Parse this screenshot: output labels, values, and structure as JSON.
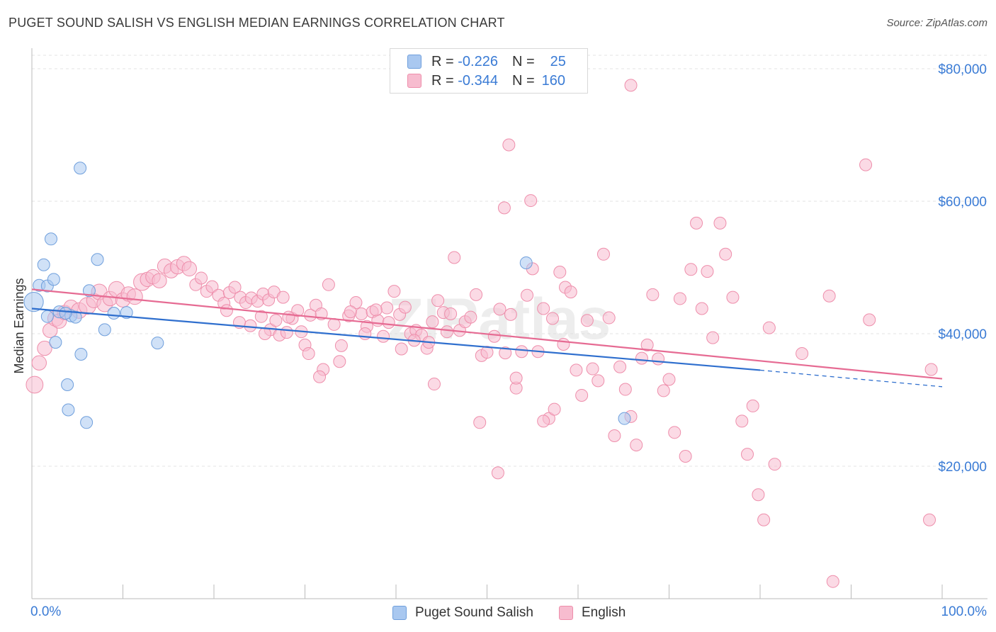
{
  "header": {
    "title": "PUGET SOUND SALISH VS ENGLISH MEDIAN EARNINGS CORRELATION CHART",
    "source": "Source: ZipAtlas.com"
  },
  "legend": {
    "rows": [
      {
        "r_label": "R =",
        "r_value": "-0.226",
        "n_label": "N =",
        "n_value": "25"
      },
      {
        "r_label": "R =",
        "r_value": "-0.344",
        "n_label": "N =",
        "n_value": "160"
      }
    ]
  },
  "bottom_legend": {
    "items": [
      {
        "label": "Puget Sound Salish"
      },
      {
        "label": "English"
      }
    ]
  },
  "watermark": "ZIPatlas",
  "colors": {
    "blue_fill": "#a9c8f0",
    "blue_stroke": "#6f9fdc",
    "blue_line": "#2f6fce",
    "pink_fill": "#f7bccf",
    "pink_stroke": "#ee8eab",
    "pink_line": "#e66b93",
    "value_text": "#3a7bd5",
    "grid": "#e3e3e3"
  },
  "chart_data": {
    "type": "scatter",
    "title": "PUGET SOUND SALISH VS ENGLISH MEDIAN EARNINGS CORRELATION CHART",
    "xlabel": "",
    "ylabel": "Median Earnings",
    "xlim": [
      0,
      100
    ],
    "ylim": [
      0,
      80000
    ],
    "x_tick_labels": [
      "0.0%",
      "100.0%"
    ],
    "y_ticks": [
      {
        "value": 20000,
        "label": "$20,000"
      },
      {
        "value": 40000,
        "label": "$40,000"
      },
      {
        "value": 60000,
        "label": "$60,000"
      },
      {
        "value": 80000,
        "label": "$80,000"
      }
    ],
    "grid": true,
    "legend_position": "top-center",
    "series": [
      {
        "name": "Puget Sound Salish",
        "r": -0.226,
        "n": 25,
        "trend": {
          "x0": 0,
          "y0": 43800,
          "x1": 80,
          "y1": 34500,
          "dashed_to_x": 100,
          "dashed_to_y": 32000
        },
        "points": [
          [
            0.2,
            44800,
            1.6
          ],
          [
            0.8,
            47300,
            1
          ],
          [
            1.7,
            47200,
            1
          ],
          [
            2.1,
            54300,
            1
          ],
          [
            1.3,
            50400,
            1
          ],
          [
            2.4,
            48200,
            1
          ],
          [
            5.3,
            65000,
            1
          ],
          [
            7.2,
            51200,
            1
          ],
          [
            6.3,
            46500,
            1
          ],
          [
            2.6,
            38700,
            1
          ],
          [
            5.4,
            36900,
            1
          ],
          [
            4.3,
            42700,
            1
          ],
          [
            3.0,
            43300,
            1
          ],
          [
            4.8,
            42500,
            1
          ],
          [
            9.0,
            43100,
            1
          ],
          [
            10.4,
            43200,
            1
          ],
          [
            8.0,
            40600,
            1
          ],
          [
            13.8,
            38600,
            1
          ],
          [
            4.0,
            28500,
            1
          ],
          [
            3.9,
            32300,
            1
          ],
          [
            6.0,
            26600,
            1
          ],
          [
            1.7,
            42600,
            1
          ],
          [
            54.3,
            50700,
            1
          ],
          [
            65.1,
            27200,
            1
          ],
          [
            3.7,
            43100,
            1
          ]
        ]
      },
      {
        "name": "English",
        "r": -0.344,
        "n": 160,
        "trend": {
          "x0": 0,
          "y0": 46700,
          "x1": 100,
          "y1": 33200
        },
        "points": [
          [
            0.3,
            32300,
            1.4
          ],
          [
            0.8,
            35600,
            1.2
          ],
          [
            1.4,
            37800,
            1.2
          ],
          [
            2.0,
            40500,
            1.2
          ],
          [
            2.6,
            42300,
            1.3
          ],
          [
            3.0,
            41900,
            1.2
          ],
          [
            3.6,
            43200,
            1.2
          ],
          [
            4.3,
            44000,
            1.2
          ],
          [
            5.2,
            43500,
            1.3
          ],
          [
            6.1,
            44200,
            1.4
          ],
          [
            6.8,
            45000,
            1.2
          ],
          [
            7.4,
            46300,
            1.3
          ],
          [
            8.0,
            44500,
            1.3
          ],
          [
            8.6,
            45300,
            1.2
          ],
          [
            9.3,
            46700,
            1.3
          ],
          [
            10.0,
            45100,
            1.2
          ],
          [
            10.6,
            46000,
            1.2
          ],
          [
            11.3,
            45600,
            1.3
          ],
          [
            12.1,
            47800,
            1.4
          ],
          [
            12.7,
            48200,
            1.2
          ],
          [
            13.3,
            48600,
            1.2
          ],
          [
            14.0,
            48000,
            1.2
          ],
          [
            14.6,
            50200,
            1.2
          ],
          [
            15.3,
            49500,
            1.2
          ],
          [
            16.0,
            50100,
            1.2
          ],
          [
            16.7,
            50600,
            1.2
          ],
          [
            17.3,
            49800,
            1.2
          ],
          [
            18.0,
            47400,
            1
          ],
          [
            18.6,
            48400,
            1
          ],
          [
            19.2,
            46400,
            1
          ],
          [
            19.8,
            47100,
            1
          ],
          [
            20.5,
            45800,
            1
          ],
          [
            21.1,
            44600,
            1
          ],
          [
            21.7,
            46200,
            1
          ],
          [
            22.3,
            47000,
            1
          ],
          [
            22.9,
            45500,
            1
          ],
          [
            23.5,
            44700,
            1
          ],
          [
            24.1,
            45400,
            1
          ],
          [
            24.8,
            44900,
            1
          ],
          [
            25.4,
            46000,
            1
          ],
          [
            26.0,
            45100,
            1
          ],
          [
            26.6,
            46300,
            1
          ],
          [
            24.0,
            41200,
            1
          ],
          [
            25.2,
            42600,
            1
          ],
          [
            26.2,
            40600,
            1
          ],
          [
            27.2,
            39800,
            1
          ],
          [
            28.0,
            40200,
            1
          ],
          [
            28.6,
            42300,
            1
          ],
          [
            29.2,
            43500,
            1
          ],
          [
            30.0,
            38300,
            1
          ],
          [
            30.6,
            42800,
            1
          ],
          [
            31.2,
            44300,
            1
          ],
          [
            31.8,
            43000,
            1
          ],
          [
            32.6,
            47400,
            1
          ],
          [
            33.2,
            41400,
            1
          ],
          [
            34.0,
            38200,
            1
          ],
          [
            34.8,
            42700,
            1
          ],
          [
            35.6,
            44700,
            1
          ],
          [
            36.2,
            43000,
            1
          ],
          [
            36.8,
            41100,
            1
          ],
          [
            37.4,
            43300,
            1
          ],
          [
            38.0,
            42000,
            1
          ],
          [
            38.6,
            39600,
            1
          ],
          [
            39.2,
            41700,
            1
          ],
          [
            39.8,
            46400,
            1
          ],
          [
            40.4,
            42900,
            1
          ],
          [
            41.0,
            44000,
            1
          ],
          [
            41.6,
            40000,
            1
          ],
          [
            42.2,
            40500,
            1
          ],
          [
            42.8,
            39800,
            1
          ],
          [
            43.4,
            37800,
            1
          ],
          [
            44.0,
            41800,
            1
          ],
          [
            44.6,
            45000,
            1
          ],
          [
            45.2,
            43200,
            1
          ],
          [
            46.0,
            43000,
            1
          ],
          [
            46.4,
            51500,
            1
          ],
          [
            47.0,
            40500,
            1
          ],
          [
            47.6,
            41800,
            1
          ],
          [
            48.2,
            42500,
            1
          ],
          [
            48.8,
            45900,
            1
          ],
          [
            49.4,
            36700,
            1
          ],
          [
            50.0,
            37200,
            1
          ],
          [
            50.8,
            39600,
            1
          ],
          [
            51.4,
            43700,
            1
          ],
          [
            52.0,
            37100,
            1
          ],
          [
            52.6,
            42900,
            1
          ],
          [
            53.2,
            31800,
            1
          ],
          [
            53.8,
            37300,
            1
          ],
          [
            54.4,
            45800,
            1
          ],
          [
            55.0,
            49800,
            1
          ],
          [
            55.6,
            37300,
            1
          ],
          [
            56.2,
            43800,
            1
          ],
          [
            56.8,
            27200,
            1
          ],
          [
            57.4,
            28600,
            1
          ],
          [
            58.0,
            49300,
            1
          ],
          [
            58.6,
            47000,
            1
          ],
          [
            59.2,
            46300,
            1
          ],
          [
            59.8,
            34500,
            1
          ],
          [
            60.4,
            30700,
            1
          ],
          [
            61.0,
            42000,
            1
          ],
          [
            61.6,
            34700,
            1
          ],
          [
            62.2,
            32900,
            1
          ],
          [
            62.8,
            52000,
            1
          ],
          [
            63.4,
            42400,
            1
          ],
          [
            64.0,
            24600,
            1
          ],
          [
            64.6,
            35000,
            1
          ],
          [
            65.2,
            31600,
            1
          ],
          [
            65.8,
            27500,
            1
          ],
          [
            66.4,
            23200,
            1
          ],
          [
            67.0,
            36300,
            1
          ],
          [
            67.6,
            38300,
            1
          ],
          [
            68.2,
            45900,
            1
          ],
          [
            68.8,
            36200,
            1
          ],
          [
            69.4,
            31400,
            1
          ],
          [
            70.0,
            33100,
            1
          ],
          [
            70.6,
            25100,
            1
          ],
          [
            71.2,
            45300,
            1
          ],
          [
            71.8,
            21500,
            1
          ],
          [
            72.4,
            49700,
            1
          ],
          [
            73.0,
            56700,
            1
          ],
          [
            73.6,
            43800,
            1
          ],
          [
            74.2,
            49400,
            1
          ],
          [
            74.8,
            39400,
            1
          ],
          [
            75.6,
            56700,
            1
          ],
          [
            76.2,
            52000,
            1
          ],
          [
            77.0,
            45500,
            1
          ],
          [
            78.0,
            26800,
            1
          ],
          [
            78.6,
            21800,
            1
          ],
          [
            79.2,
            29100,
            1
          ],
          [
            79.8,
            15700,
            1
          ],
          [
            80.4,
            11900,
            1
          ],
          [
            81.0,
            40900,
            1
          ],
          [
            81.6,
            20300,
            1
          ],
          [
            84.6,
            37000,
            1
          ],
          [
            87.6,
            45700,
            1
          ],
          [
            88.0,
            2600,
            1
          ],
          [
            91.6,
            65500,
            1
          ],
          [
            92.0,
            42100,
            1
          ],
          [
            98.6,
            11900,
            1
          ],
          [
            98.8,
            34600,
            1
          ],
          [
            65.8,
            77500,
            1
          ],
          [
            52.4,
            68500,
            1
          ],
          [
            51.9,
            59000,
            1
          ],
          [
            54.8,
            60100,
            1
          ],
          [
            58.4,
            38400,
            1
          ],
          [
            57.2,
            42300,
            1
          ],
          [
            56.2,
            26800,
            1
          ],
          [
            53.2,
            33300,
            1
          ],
          [
            51.2,
            19000,
            1
          ],
          [
            49.2,
            26600,
            1
          ],
          [
            45.6,
            40300,
            1
          ],
          [
            44.2,
            32400,
            1
          ],
          [
            43.6,
            38700,
            1
          ],
          [
            42.0,
            39000,
            1
          ],
          [
            40.6,
            37700,
            1
          ],
          [
            39.0,
            43900,
            1
          ],
          [
            37.8,
            43600,
            1
          ],
          [
            36.6,
            40000,
            1
          ],
          [
            35.0,
            43300,
            1
          ],
          [
            33.8,
            35800,
            1
          ],
          [
            32.0,
            34600,
            1
          ],
          [
            31.6,
            33500,
            1
          ],
          [
            30.4,
            37000,
            1
          ],
          [
            29.6,
            40300,
            1
          ],
          [
            28.2,
            42500,
            1
          ],
          [
            27.6,
            45500,
            1
          ],
          [
            26.8,
            42000,
            1
          ],
          [
            25.6,
            40000,
            1
          ],
          [
            22.8,
            41700,
            1
          ],
          [
            21.4,
            43500,
            1
          ]
        ]
      }
    ]
  }
}
